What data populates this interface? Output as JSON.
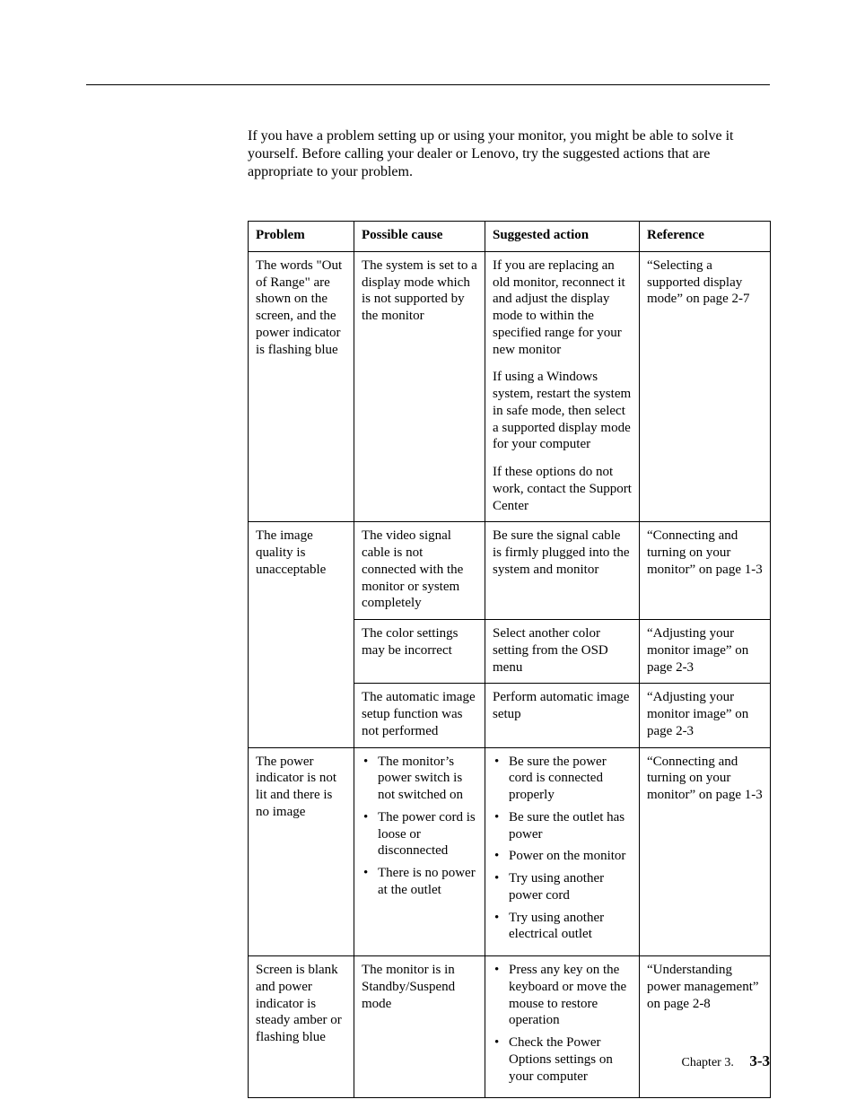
{
  "intro": "If you have a problem setting up or using your monitor, you might be able to solve it yourself. Before calling your dealer or Lenovo, try the suggested actions that are appropriate to your problem.",
  "headers": {
    "problem": "Problem",
    "cause": "Possible cause",
    "action": "Suggested action",
    "reference": "Reference"
  },
  "rows": {
    "r1": {
      "problem": "The words \"Out of Range\" are shown on the screen, and the power indicator is flashing blue",
      "cause": "The system is set to a display mode which is not supported by the monitor",
      "action_p1": "If you are replacing an old monitor, reconnect it and adjust the display mode to within the specified range for your new monitor",
      "action_p2": "If using a Windows system, restart the system in safe mode, then select a supported display mode for your computer",
      "action_p3": "If these options do not work, contact the Support Center",
      "reference": "“Selecting a supported display mode” on page 2-7"
    },
    "r2a": {
      "problem": "The image quality is unacceptable",
      "cause": "The video signal cable is not connected with the monitor or system completely",
      "action": "Be sure the signal cable is firmly plugged into the system and monitor",
      "reference": "“Connecting and turning on your monitor” on page 1-3"
    },
    "r2b": {
      "cause": "The color settings may be incorrect",
      "action": "Select another color setting from the OSD menu",
      "reference": "“Adjusting your monitor image” on page 2-3"
    },
    "r2c": {
      "cause": "The automatic image setup function was not performed",
      "action": "Perform automatic image setup",
      "reference": "“Adjusting your monitor image” on page 2-3"
    },
    "r3": {
      "problem": "The power indicator is not lit and there is no image",
      "cause_b1": "The monitor’s power switch is not switched on",
      "cause_b2": "The power cord is loose or disconnected",
      "cause_b3": "There is no power at the outlet",
      "action_b1": "Be sure the power cord is connected properly",
      "action_b2": "Be sure the outlet has power",
      "action_b3": "Power on the monitor",
      "action_b4": "Try using another power cord",
      "action_b5": "Try using another electrical outlet",
      "reference": "“Connecting and turning on your monitor” on page 1-3"
    },
    "r4": {
      "problem": "Screen is blank and power indicator is steady amber or flashing blue",
      "cause": "The monitor is in Standby/Suspend mode",
      "action_b1": "Press any key on the keyboard or move the mouse to restore operation",
      "action_b2": "Check the Power Options settings on your computer",
      "reference": "“Understanding power management” on page 2-8"
    }
  },
  "footer": {
    "chapter": "Chapter 3.",
    "page": "3-3"
  }
}
